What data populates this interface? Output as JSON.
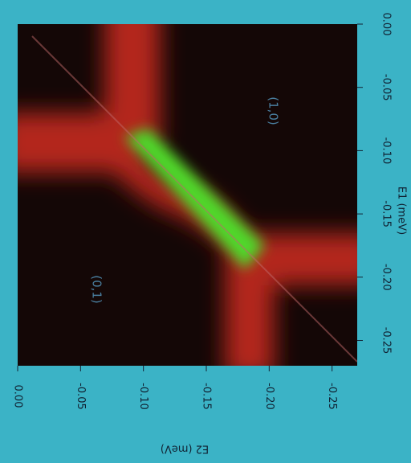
{
  "chart_data": {
    "type": "heatmap",
    "xlabel": "E2 (meV)",
    "ylabel": "E1 (meV)",
    "xlim": [
      0,
      -0.27
    ],
    "ylim": [
      0,
      -0.27
    ],
    "xticks": [
      {
        "value": 0,
        "label": "0.00"
      },
      -0.05,
      {
        "value": -0.1,
        "label": "-0.10"
      },
      -0.15,
      {
        "value": -0.2,
        "label": "-0.20"
      },
      -0.25
    ],
    "yticks": [
      {
        "value": 0,
        "label": "0.00"
      },
      -0.05,
      {
        "value": -0.1,
        "label": "-0.10"
      },
      -0.15,
      {
        "value": -0.2,
        "label": "-0.20"
      },
      -0.25
    ],
    "annotations": [
      "(1,0)",
      "(0,1)"
    ]
  }
}
